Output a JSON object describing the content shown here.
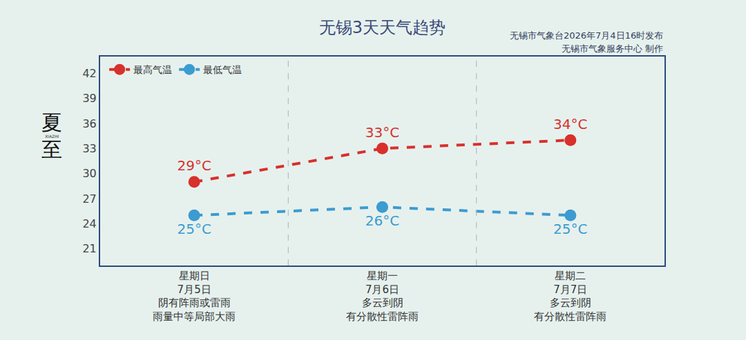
{
  "chart_data": {
    "type": "line",
    "title": "无锡3天天气趋势",
    "subtitle": [
      "无锡市气象台2026年7月4日16时发布",
      "无锡市气象服务中心 制作"
    ],
    "side_text": "夏至",
    "side_text_small": "XIAZHI",
    "categories": [
      "星期日",
      "星期一",
      "星期二"
    ],
    "category_details": [
      [
        "7月5日",
        "阴有阵雨或雷雨",
        "雨量中等局部大雨"
      ],
      [
        "7月6日",
        "多云到阴",
        "有分散性雷阵雨"
      ],
      [
        "7月7日",
        "多云到阴",
        "有分散性雷阵雨"
      ]
    ],
    "series": [
      {
        "name": "最高气温",
        "color": "#d8302b",
        "values": [
          29,
          33,
          34
        ],
        "value_labels": [
          "29°C",
          "33°C",
          "34°C"
        ]
      },
      {
        "name": "最低气温",
        "color": "#3c9bd0",
        "values": [
          25,
          26,
          25
        ],
        "value_labels": [
          "25°C",
          "26°C",
          "25°C"
        ]
      }
    ],
    "ylim": [
      19,
      44
    ],
    "yticks": [
      21,
      24,
      27,
      30,
      33,
      36,
      39,
      42
    ],
    "grid": false,
    "legend": "upper left",
    "data_labels": true,
    "marker": "circle",
    "line_style": "dash"
  }
}
